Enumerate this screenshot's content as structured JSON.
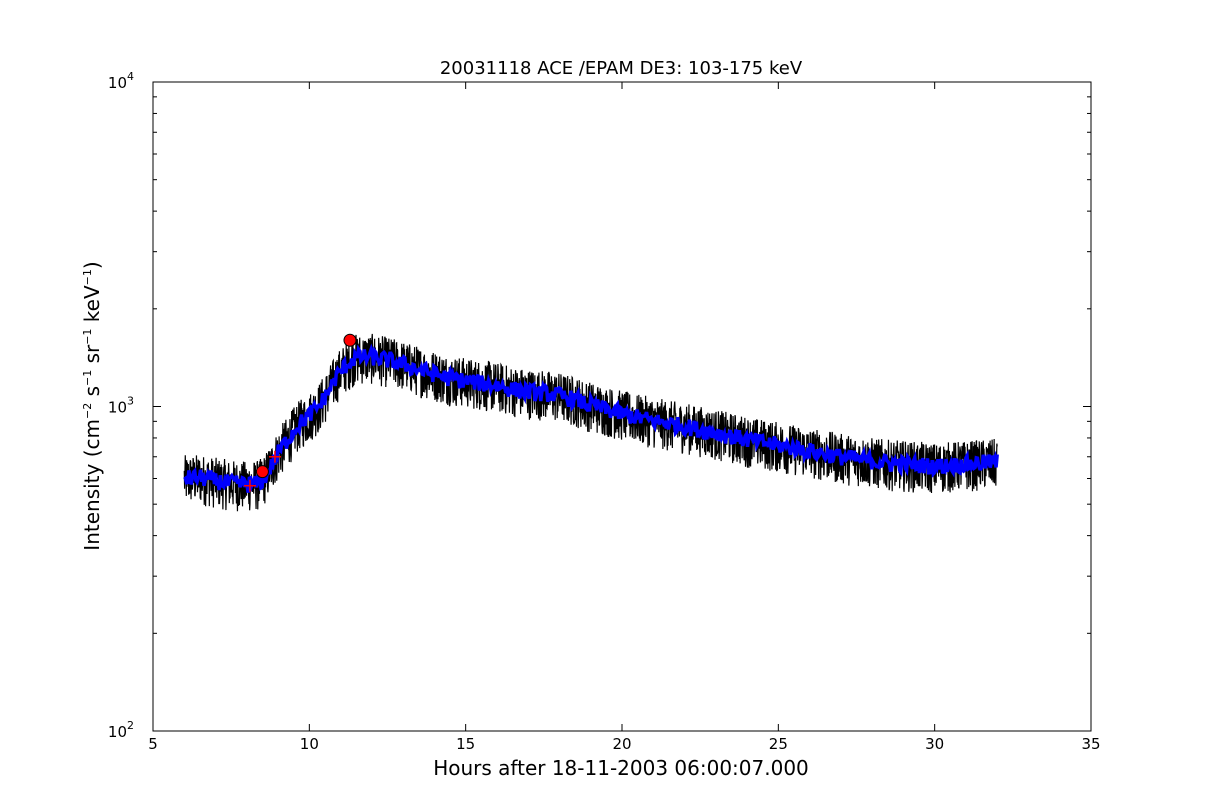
{
  "chart_data": {
    "type": "line",
    "title": "20031118 ACE /EPAM DE3: 103-175 keV",
    "xlabel": "Hours after 18-11-2003 06:00:07.000",
    "ylabel": {
      "prefix": "Intensity (cm",
      "exp1": "−2",
      "mid1": " s",
      "exp2": "−1",
      "mid2": " sr",
      "exp3": "−1",
      "mid3": " keV",
      "exp4": "−1",
      "suffix": ")"
    },
    "xlim": [
      5,
      35
    ],
    "ylim": [
      100,
      10000
    ],
    "yscale": "log",
    "grid": false,
    "x_ticks": [
      5,
      10,
      15,
      20,
      25,
      30,
      35
    ],
    "x_tick_labels": [
      "5",
      "10",
      "15",
      "20",
      "25",
      "30",
      "35"
    ],
    "y_ticks": [
      {
        "value": 100,
        "base": "10",
        "exp": "2"
      },
      {
        "value": 1000,
        "base": "10",
        "exp": "3"
      },
      {
        "value": 10000,
        "base": "10",
        "exp": "4"
      }
    ],
    "series": [
      {
        "color": "#000000",
        "style": "noisy raw",
        "x": [
          6.0,
          6.5,
          7.0,
          7.5,
          8.0,
          8.4,
          8.6,
          8.8,
          9.0,
          9.3,
          9.6,
          10.0,
          10.3,
          10.6,
          10.9,
          11.2,
          11.5,
          12.0,
          12.5,
          13.0,
          13.5,
          14.0,
          14.5,
          15.0,
          15.5,
          16.0,
          16.5,
          17.0,
          17.5,
          18.0,
          18.5,
          19.0,
          19.5,
          20.0,
          20.5,
          21.0,
          21.5,
          22.0,
          22.5,
          23.0,
          23.5,
          24.0,
          24.5,
          25.0,
          25.5,
          26.0,
          26.5,
          27.0,
          27.5,
          28.0,
          28.5,
          29.0,
          29.5,
          30.0,
          30.5,
          31.0,
          31.5,
          32.0
        ],
        "y": [
          600,
          605,
          590,
          580,
          575,
          580,
          610,
          660,
          720,
          790,
          870,
          940,
          1000,
          1110,
          1250,
          1350,
          1420,
          1420,
          1390,
          1350,
          1300,
          1260,
          1220,
          1200,
          1180,
          1160,
          1130,
          1110,
          1100,
          1080,
          1050,
          1010,
          980,
          950,
          925,
          905,
          885,
          870,
          850,
          830,
          810,
          790,
          775,
          760,
          745,
          730,
          715,
          700,
          690,
          680,
          670,
          665,
          660,
          655,
          660,
          665,
          670,
          675
        ]
      },
      {
        "color": "#0000ff",
        "style": "smoothed",
        "x": [
          6.0,
          6.5,
          7.0,
          7.5,
          8.0,
          8.4,
          8.6,
          8.8,
          9.0,
          9.3,
          9.6,
          10.0,
          10.3,
          10.6,
          10.9,
          11.2,
          11.5,
          12.0,
          12.5,
          13.0,
          13.5,
          14.0,
          14.5,
          15.0,
          15.5,
          16.0,
          16.5,
          17.0,
          17.5,
          18.0,
          18.5,
          19.0,
          19.5,
          20.0,
          20.5,
          21.0,
          21.5,
          22.0,
          22.5,
          23.0,
          23.5,
          24.0,
          24.5,
          25.0,
          25.5,
          26.0,
          26.5,
          27.0,
          27.5,
          28.0,
          28.5,
          29.0,
          29.5,
          30.0,
          30.5,
          31.0,
          31.5,
          32.0
        ],
        "y": [
          600,
          605,
          590,
          580,
          575,
          580,
          610,
          660,
          720,
          790,
          870,
          940,
          1000,
          1110,
          1250,
          1350,
          1420,
          1420,
          1390,
          1350,
          1300,
          1260,
          1220,
          1200,
          1180,
          1160,
          1130,
          1110,
          1100,
          1080,
          1050,
          1010,
          980,
          950,
          925,
          905,
          885,
          870,
          850,
          830,
          810,
          790,
          775,
          760,
          745,
          730,
          715,
          700,
          690,
          680,
          670,
          665,
          660,
          655,
          660,
          665,
          670,
          675
        ]
      }
    ],
    "markers": [
      {
        "type": "circle",
        "color": "#ff0000",
        "x": 11.3,
        "y": 1600
      },
      {
        "type": "circle",
        "color": "#ff0000",
        "x": 8.5,
        "y": 630
      },
      {
        "type": "plus",
        "color": "#ff0000",
        "x": 8.1,
        "y": 570
      },
      {
        "type": "plus",
        "color": "#ff0000",
        "x": 8.9,
        "y": 700
      }
    ]
  }
}
